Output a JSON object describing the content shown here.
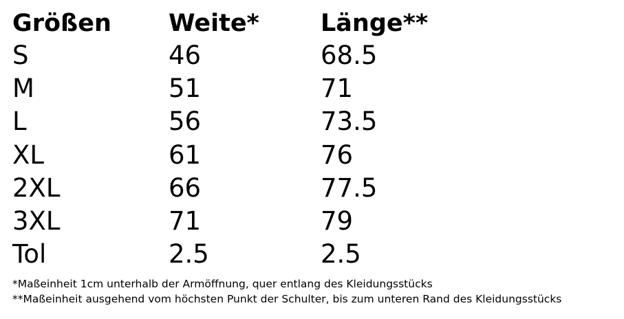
{
  "table": {
    "header": [
      "Größen",
      "Weite*",
      "Länge**"
    ],
    "rows": [
      [
        "S",
        "46",
        "68.5"
      ],
      [
        "M",
        "51",
        "71"
      ],
      [
        "L",
        "56",
        "73.5"
      ],
      [
        "XL",
        "61",
        "76"
      ],
      [
        "2XL",
        "66",
        "77.5"
      ],
      [
        "3XL",
        "71",
        "79"
      ],
      [
        "Tol",
        "2.5",
        "2.5"
      ]
    ]
  },
  "footnotes": [
    "*Maßeinheit 1cm unterhalb der Armöffnung, quer entlang des Kleidungsstücks",
    "**Maßeinheit ausgehend vom höchsten Punkt der Schulter, bis zum unteren Rand des Kleidungsstücks"
  ]
}
